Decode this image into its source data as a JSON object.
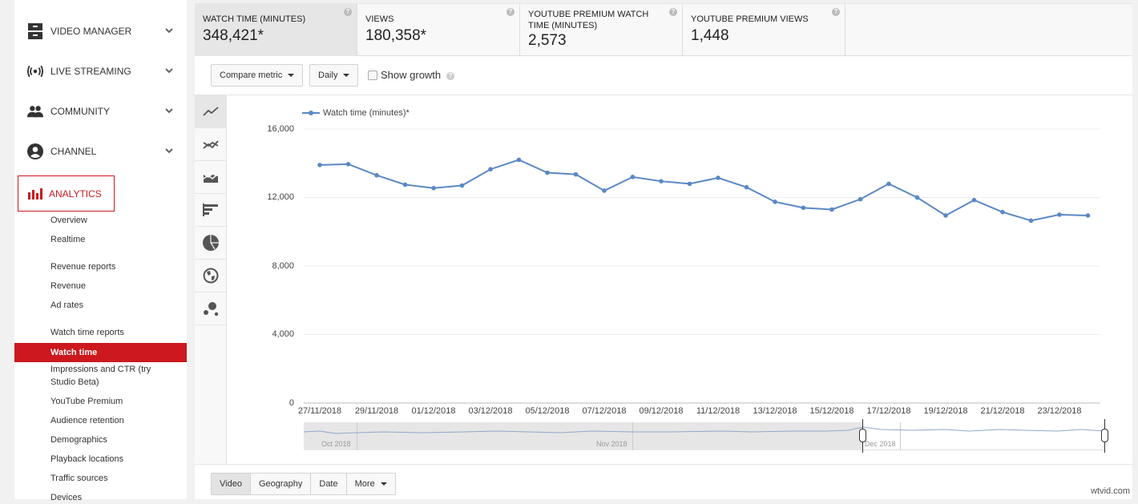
{
  "sidebar": {
    "top_items": [
      {
        "label": "VIDEO MANAGER",
        "icon": "video-manager-icon"
      },
      {
        "label": "LIVE STREAMING",
        "icon": "live-streaming-icon"
      },
      {
        "label": "COMMUNITY",
        "icon": "community-icon"
      },
      {
        "label": "CHANNEL",
        "icon": "channel-icon"
      }
    ],
    "analytics": {
      "label": "ANALYTICS",
      "icon": "analytics-bars-icon"
    },
    "sub_items": [
      {
        "label": "Overview"
      },
      {
        "label": "Realtime"
      },
      {
        "label": "Revenue reports"
      },
      {
        "label": "Revenue"
      },
      {
        "label": "Ad rates"
      },
      {
        "label": "Watch time reports"
      },
      {
        "label": "Watch time",
        "active": true
      },
      {
        "label": "Impressions and CTR (try Studio Beta)"
      },
      {
        "label": "YouTube Premium"
      },
      {
        "label": "Audience retention"
      },
      {
        "label": "Demographics"
      },
      {
        "label": "Playback locations"
      },
      {
        "label": "Traffic sources"
      },
      {
        "label": "Devices"
      }
    ]
  },
  "metrics": [
    {
      "label": "WATCH TIME (MINUTES)",
      "value": "348,421*",
      "selected": true
    },
    {
      "label": "VIEWS",
      "value": "180,358*"
    },
    {
      "label": "YOUTUBE PREMIUM WATCH TIME (MINUTES)",
      "value": "2,573"
    },
    {
      "label": "YOUTUBE PREMIUM VIEWS",
      "value": "1,448"
    }
  ],
  "toolbar": {
    "compare_metric": "Compare metric",
    "interval": "Daily",
    "show_growth": "Show growth",
    "show_growth_checked": false
  },
  "chart_types": [
    "line-chart-icon",
    "multi-line-chart-icon",
    "stacked-area-chart-icon",
    "bar-chart-icon",
    "pie-chart-icon",
    "world-map-icon",
    "bubble-chart-icon"
  ],
  "chart_data": {
    "type": "line",
    "title": "",
    "legend": [
      "Watch time (minutes)*"
    ],
    "legend_position": "top-left",
    "grid": true,
    "xlabel": "",
    "ylabel": "",
    "ylim": [
      0,
      16000
    ],
    "yticks": [
      "0",
      "4,000",
      "8,000",
      "12,000",
      "16,000"
    ],
    "x_tick_labels": [
      "27/11/2018",
      "29/11/2018",
      "01/12/2018",
      "03/12/2018",
      "05/12/2018",
      "07/12/2018",
      "09/12/2018",
      "11/12/2018",
      "13/12/2018",
      "15/12/2018",
      "17/12/2018",
      "19/12/2018",
      "21/12/2018",
      "23/12/2018"
    ],
    "x": [
      "27/11/2018",
      "28/11/2018",
      "29/11/2018",
      "30/11/2018",
      "01/12/2018",
      "02/12/2018",
      "03/12/2018",
      "04/12/2018",
      "05/12/2018",
      "06/12/2018",
      "07/12/2018",
      "08/12/2018",
      "09/12/2018",
      "10/12/2018",
      "11/12/2018",
      "12/12/2018",
      "13/12/2018",
      "14/12/2018",
      "15/12/2018",
      "16/12/2018",
      "17/12/2018",
      "18/12/2018",
      "19/12/2018",
      "20/12/2018",
      "21/12/2018",
      "22/12/2018",
      "23/12/2018",
      "24/12/2018"
    ],
    "series": [
      {
        "name": "Watch time (minutes)*",
        "color": "#5b88c4",
        "values": [
          13900,
          13950,
          13300,
          12750,
          12550,
          12700,
          13650,
          14200,
          13450,
          13350,
          12400,
          13200,
          12950,
          12800,
          13150,
          12600,
          11750,
          11400,
          11300,
          11900,
          12800,
          12000,
          10950,
          11850,
          11150,
          10650,
          11000,
          10950
        ]
      }
    ],
    "navigator": {
      "labels": [
        "Oct 2018",
        "Nov 2018",
        "Dec 2018"
      ]
    }
  },
  "bottom_tabs": [
    {
      "label": "Video",
      "selected": true
    },
    {
      "label": "Geography"
    },
    {
      "label": "Date"
    },
    {
      "label": "More",
      "dropdown": true
    }
  ],
  "watermark": "wtvid.com",
  "colors": {
    "accent": "#cc181e",
    "series": "#5b88c4"
  }
}
